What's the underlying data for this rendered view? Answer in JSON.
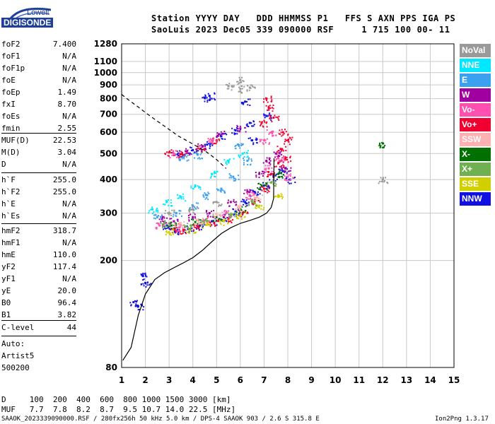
{
  "logo": {
    "lowell": "Lowell",
    "digisonde": "DIGISONDE"
  },
  "header": {
    "line1": "Station YYYY DAY   DDD HHMMSS P1   FFS S AXN PPS IGA PS",
    "line2": "SaoLuis 2023 Dec05 339 090000 RSF     1 715 100 00- 11"
  },
  "params": {
    "group1": [
      {
        "label": "foF2",
        "value": "7.400"
      },
      {
        "label": "foF1",
        "value": "N/A"
      },
      {
        "label": "foF1p",
        "value": "N/A"
      },
      {
        "label": "foE",
        "value": "N/A"
      },
      {
        "label": "foEp",
        "value": "1.49"
      },
      {
        "label": "fxI",
        "value": "8.70"
      },
      {
        "label": "foEs",
        "value": "N/A"
      },
      {
        "label": "fmin",
        "value": "2.55"
      }
    ],
    "group2": [
      {
        "label": "MUF(D)",
        "value": "22.53"
      },
      {
        "label": "M(D)",
        "value": "3.04"
      },
      {
        "label": "D",
        "value": "N/A"
      }
    ],
    "group3": [
      {
        "label": "h`F",
        "value": "255.0"
      },
      {
        "label": "h`F2",
        "value": "255.0"
      },
      {
        "label": "h`E",
        "value": "N/A"
      },
      {
        "label": "h`Es",
        "value": "N/A"
      }
    ],
    "group4": [
      {
        "label": "hmF2",
        "value": "318.7"
      },
      {
        "label": "hmF1",
        "value": "N/A"
      },
      {
        "label": "hmE",
        "value": "110.0"
      },
      {
        "label": "yF2",
        "value": "117.4"
      },
      {
        "label": "yF1",
        "value": "N/A"
      },
      {
        "label": "yE",
        "value": "20.0"
      },
      {
        "label": "B0",
        "value": "96.4"
      },
      {
        "label": "B1",
        "value": "3.82"
      }
    ],
    "clevel": {
      "label": "C-level",
      "value": "44"
    },
    "auto": [
      "Auto:",
      "Artist5",
      "500200"
    ]
  },
  "legend": [
    {
      "label": "NoVal",
      "color": "#999999"
    },
    {
      "label": "NNE",
      "color": "#00e8ff"
    },
    {
      "label": "E",
      "color": "#3aa0f0"
    },
    {
      "label": "W",
      "color": "#a000a0"
    },
    {
      "label": "Vo-",
      "color": "#ff50b0"
    },
    {
      "label": "Vo+",
      "color": "#f00030"
    },
    {
      "label": "SSW",
      "color": "#ffb0b0"
    },
    {
      "label": "X-",
      "color": "#007000"
    },
    {
      "label": "X+",
      "color": "#70b050"
    },
    {
      "label": "SSE",
      "color": "#d0d000"
    },
    {
      "label": "NNW",
      "color": "#1010e0"
    }
  ],
  "muf_table": {
    "d_row": "D     100  200  400  600  800 1000 1500 3000 [km]",
    "muf_row": "MUF   7.7  7.8  8.2  8.7  9.5 10.7 14.0 22.5 [MHz]"
  },
  "footer": {
    "left": "SAAOK_2023339090000.RSF / 280fx256h 50 kHz 5.0 km / DPS-4 SAAOK 903 / 2.6 S 315.8 E",
    "right": "Ion2Png 1.3.17"
  },
  "chart_data": {
    "type": "scatter",
    "title": "",
    "xlabel": "",
    "ylabel": "",
    "xlim": [
      1,
      15
    ],
    "ylim": [
      80,
      1280
    ],
    "y_scale": "log",
    "x_ticks": [
      1,
      2,
      3,
      4,
      5,
      6,
      7,
      8,
      9,
      10,
      11,
      12,
      13,
      14,
      15
    ],
    "y_ticks": [
      80,
      200,
      300,
      400,
      500,
      600,
      700,
      800,
      900,
      1000,
      1100,
      1280
    ],
    "grid": true,
    "series": [
      {
        "type": "line",
        "style": "solid",
        "color": "#000000",
        "points": [
          [
            1.05,
            85
          ],
          [
            1.4,
            95
          ],
          [
            1.7,
            125
          ],
          [
            2.0,
            150
          ],
          [
            2.4,
            170
          ],
          [
            2.8,
            180
          ],
          [
            3.2,
            188
          ],
          [
            3.6,
            196
          ],
          [
            4.0,
            205
          ],
          [
            4.4,
            218
          ],
          [
            4.8,
            235
          ],
          [
            5.2,
            252
          ],
          [
            5.6,
            265
          ],
          [
            6.0,
            275
          ],
          [
            6.4,
            282
          ],
          [
            6.8,
            290
          ],
          [
            7.1,
            300
          ],
          [
            7.3,
            315
          ],
          [
            7.4,
            340
          ],
          [
            7.42,
            480
          ]
        ]
      },
      {
        "type": "line",
        "style": "dashed",
        "color": "#000000",
        "points": [
          [
            1.0,
            830
          ],
          [
            1.3,
            790
          ],
          [
            1.7,
            745
          ],
          [
            2.1,
            700
          ],
          [
            2.5,
            660
          ],
          [
            3.0,
            615
          ],
          [
            3.4,
            580
          ],
          [
            3.8,
            555
          ],
          [
            4.2,
            530
          ],
          [
            4.6,
            505
          ],
          [
            5.0,
            475
          ],
          [
            5.4,
            440
          ]
        ]
      },
      {
        "type": "cluster",
        "color": "#1010e0",
        "points": [
          [
            1.5,
            140
          ],
          [
            1.7,
            135
          ],
          [
            1.9,
            175
          ],
          [
            2.0,
            165
          ],
          [
            2.9,
            270
          ],
          [
            3.3,
            258
          ],
          [
            3.8,
            262
          ],
          [
            4.3,
            270
          ],
          [
            4.8,
            280
          ],
          [
            5.3,
            290
          ],
          [
            5.8,
            305
          ],
          [
            6.2,
            330
          ],
          [
            6.6,
            360
          ],
          [
            7.0,
            380
          ],
          [
            7.4,
            410
          ],
          [
            7.8,
            430
          ],
          [
            8.1,
            400
          ],
          [
            3.4,
            500
          ],
          [
            4.0,
            515
          ],
          [
            4.6,
            540
          ],
          [
            5.2,
            580
          ],
          [
            5.8,
            610
          ],
          [
            6.4,
            650
          ],
          [
            7.1,
            690
          ],
          [
            4.7,
            820
          ],
          [
            4.5,
            805
          ],
          [
            6.2,
            780
          ],
          [
            6.5,
            560
          ]
        ]
      },
      {
        "type": "cluster",
        "color": "#f00030",
        "points": [
          [
            3.1,
            262
          ],
          [
            3.6,
            258
          ],
          [
            4.2,
            268
          ],
          [
            4.9,
            276
          ],
          [
            5.5,
            285
          ],
          [
            6.1,
            300
          ],
          [
            6.6,
            330
          ],
          [
            7.0,
            370
          ],
          [
            7.3,
            420
          ],
          [
            7.6,
            460
          ],
          [
            7.9,
            480
          ],
          [
            7.7,
            520
          ],
          [
            3.0,
            505
          ],
          [
            3.5,
            498
          ],
          [
            4.3,
            520
          ],
          [
            5.0,
            560
          ],
          [
            6.9,
            650
          ],
          [
            7.2,
            740
          ],
          [
            7.1,
            800
          ],
          [
            7.4,
            680
          ],
          [
            7.8,
            600
          ],
          [
            8.0,
            560
          ]
        ]
      },
      {
        "type": "cluster",
        "color": "#a000a0",
        "points": [
          [
            2.7,
            285
          ],
          [
            3.2,
            280
          ],
          [
            4.0,
            290
          ],
          [
            4.7,
            300
          ],
          [
            5.6,
            330
          ],
          [
            6.3,
            360
          ],
          [
            6.8,
            420
          ],
          [
            7.1,
            470
          ],
          [
            7.5,
            500
          ],
          [
            7.9,
            440
          ],
          [
            3.7,
            510
          ],
          [
            4.4,
            530
          ],
          [
            5.1,
            590
          ],
          [
            6.0,
            620
          ]
        ]
      },
      {
        "type": "cluster",
        "color": "#ff50b0",
        "points": [
          [
            2.6,
            270
          ],
          [
            3.4,
            265
          ],
          [
            4.5,
            282
          ],
          [
            5.4,
            300
          ],
          [
            6.4,
            350
          ],
          [
            7.2,
            440
          ],
          [
            7.6,
            480
          ],
          [
            8.0,
            410
          ],
          [
            3.2,
            500
          ],
          [
            4.8,
            560
          ],
          [
            7.0,
            560
          ],
          [
            7.3,
            600
          ]
        ]
      },
      {
        "type": "cluster",
        "color": "#d0d000",
        "points": [
          [
            3.0,
            255
          ],
          [
            3.9,
            260
          ],
          [
            4.6,
            272
          ],
          [
            5.3,
            280
          ],
          [
            6.0,
            295
          ],
          [
            6.8,
            320
          ],
          [
            7.6,
            350
          ]
        ]
      },
      {
        "type": "cluster",
        "color": "#3aa0f0",
        "points": [
          [
            2.5,
            290
          ],
          [
            3.3,
            300
          ],
          [
            4.0,
            320
          ],
          [
            4.6,
            350
          ],
          [
            5.2,
            370
          ],
          [
            5.7,
            410
          ],
          [
            6.3,
            470
          ],
          [
            4.2,
            495
          ],
          [
            3.6,
            485
          ],
          [
            5.9,
            540
          ]
        ]
      },
      {
        "type": "cluster",
        "color": "#007000",
        "points": [
          [
            3.1,
            270
          ],
          [
            4.1,
            278
          ],
          [
            5.0,
            290
          ],
          [
            6.0,
            310
          ],
          [
            6.9,
            380
          ],
          [
            7.6,
            420
          ],
          [
            12.0,
            545
          ]
        ]
      },
      {
        "type": "cluster",
        "color": "#70b050",
        "points": [
          [
            2.8,
            275
          ],
          [
            3.7,
            268
          ],
          [
            4.4,
            280
          ],
          [
            5.6,
            295
          ],
          [
            6.5,
            330
          ],
          [
            7.3,
            390
          ]
        ]
      },
      {
        "type": "cluster",
        "color": "#00e8ff",
        "points": [
          [
            2.3,
            310
          ],
          [
            2.9,
            330
          ],
          [
            3.5,
            345
          ],
          [
            4.1,
            380
          ],
          [
            4.8,
            420
          ],
          [
            5.5,
            470
          ],
          [
            6.1,
            500
          ]
        ]
      },
      {
        "type": "cluster",
        "color": "#ffb0b0",
        "points": [
          [
            3.4,
            272
          ],
          [
            4.2,
            282
          ],
          [
            5.0,
            298
          ],
          [
            5.9,
            315
          ],
          [
            6.7,
            345
          ]
        ]
      },
      {
        "type": "cluster",
        "color": "#999999",
        "points": [
          [
            3.0,
            300
          ],
          [
            4.0,
            310
          ],
          [
            5.0,
            330
          ],
          [
            6.0,
            940
          ],
          [
            6.4,
            880
          ],
          [
            6.0,
            870
          ],
          [
            5.5,
            890
          ],
          [
            12.0,
            400
          ]
        ]
      }
    ]
  }
}
